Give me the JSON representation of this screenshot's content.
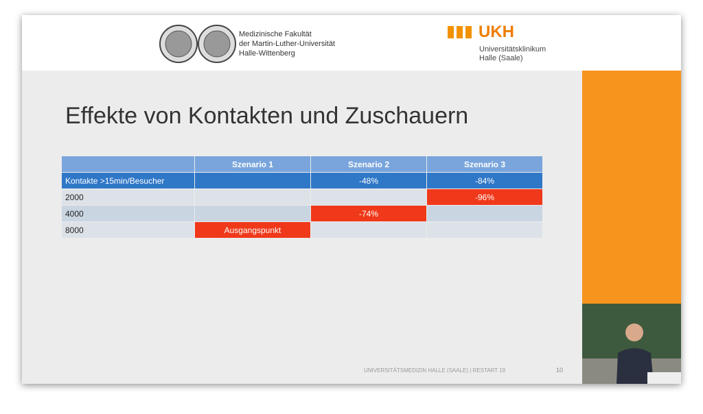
{
  "header": {
    "faculty_lines": [
      "Medizinische Fakultät",
      "der Martin-Luther-Universität",
      "Halle-Wittenberg"
    ],
    "logo_text": "UKH",
    "clinic_lines": [
      "Universitätsklinikum",
      "Halle (Saale)"
    ]
  },
  "title": "Effekte von Kontakten und Zuschauern",
  "table": {
    "header": [
      null,
      "Szenario 1",
      "Szenario 2",
      "Szenario 3"
    ],
    "rows": [
      [
        "Kontakte >15min/Besucher",
        null,
        "-48%",
        "-84%"
      ],
      [
        "2000",
        null,
        null,
        "-96%"
      ],
      [
        "4000",
        null,
        "-74%",
        null
      ],
      [
        "8000",
        "Ausgangspunkt",
        null,
        null
      ]
    ]
  },
  "footer": {
    "text": "UNIVERSITÄTSMEDIZIN HALLE (SAALE) | RESTART 19",
    "page": "10"
  }
}
